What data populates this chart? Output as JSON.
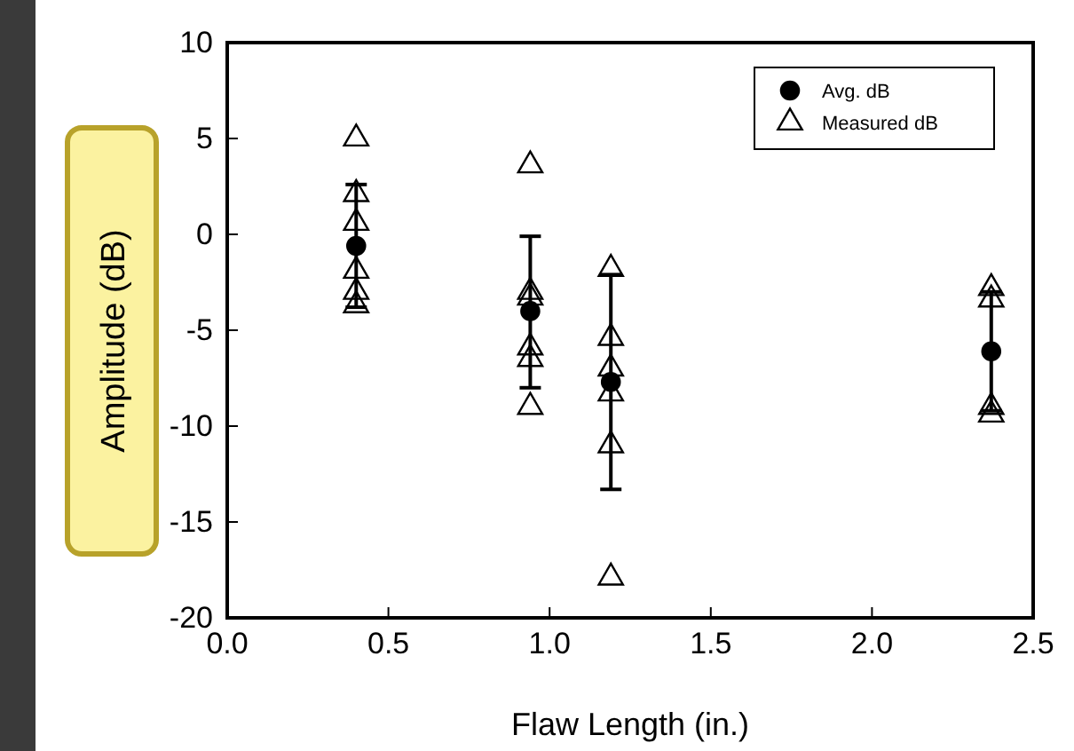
{
  "chart_data": {
    "type": "scatter",
    "xlabel": "Flaw Length (in.)",
    "ylabel": "Amplitude (dB)",
    "xlim": [
      0,
      2.5
    ],
    "ylim": [
      -20,
      10
    ],
    "xticks": [
      {
        "value": 0,
        "label": "0.0"
      },
      {
        "value": 0.5,
        "label": "0.5"
      },
      {
        "value": 1,
        "label": "1.0"
      },
      {
        "value": 1.5,
        "label": "1.5"
      },
      {
        "value": 2,
        "label": "2.0"
      },
      {
        "value": 2.5,
        "label": "2.5"
      }
    ],
    "yticks": [
      -20,
      -15,
      -10,
      -5,
      0,
      5,
      10
    ],
    "grid": false,
    "legend": "top right",
    "series": [
      {
        "name": "Avg. dB",
        "color": "#000000",
        "marker": "circle",
        "x": [
          0.4,
          0.94,
          1.19,
          2.37
        ],
        "values": [
          -0.6,
          -4.0,
          -7.7,
          -6.1
        ],
        "errors": [
          [
            -3.8,
            2.6
          ],
          [
            -8.0,
            -0.1
          ],
          [
            -13.3,
            -2.1
          ],
          [
            -9.2,
            -3.0
          ]
        ]
      },
      {
        "name": "Measured dB",
        "color": "#000000",
        "marker": "triangle",
        "x": [
          0.4,
          0.4,
          0.4,
          0.4,
          0.4,
          0.4,
          0.94,
          0.94,
          0.94,
          0.94,
          0.94,
          0.94,
          1.19,
          1.19,
          1.19,
          1.19,
          1.19,
          1.19,
          2.37,
          2.37,
          2.37,
          2.37
        ],
        "values": [
          5.0,
          2.1,
          0.6,
          -1.9,
          -3.0,
          -3.7,
          3.6,
          -3.0,
          -3.3,
          -5.9,
          -6.5,
          -9.0,
          -1.8,
          -5.4,
          -7.0,
          -8.3,
          -11.0,
          -17.9,
          -2.8,
          -3.4,
          -9.0,
          -9.4
        ]
      }
    ]
  }
}
